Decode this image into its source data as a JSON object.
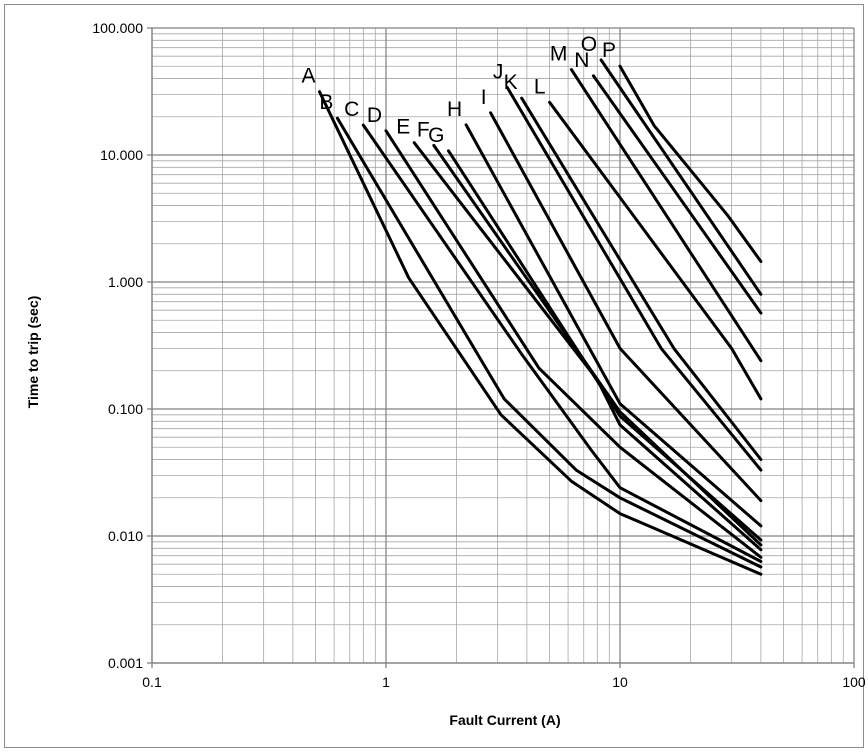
{
  "chart_data": {
    "type": "line",
    "title": "",
    "xlabel": "Fault Current (A)",
    "ylabel": "Time to trip (sec)",
    "xscale": "log",
    "yscale": "log",
    "xlim": [
      0.1,
      100
    ],
    "ylim": [
      0.001,
      100
    ],
    "grid": true,
    "legend": "none",
    "colors": {
      "line": "#000000",
      "grid": "#a6a6a6",
      "frame": "#8c8c8c"
    },
    "x_tick_labels": [
      {
        "value": 0.1,
        "label": "0.1"
      },
      {
        "value": 1,
        "label": "1"
      },
      {
        "value": 10,
        "label": "10"
      },
      {
        "value": 100,
        "label": "100"
      }
    ],
    "y_tick_labels": [
      {
        "value": 0.001,
        "label": "0.001"
      },
      {
        "value": 0.01,
        "label": "0.010"
      },
      {
        "value": 0.1,
        "label": "0.100"
      },
      {
        "value": 1,
        "label": "1.000"
      },
      {
        "value": 10,
        "label": "10.000"
      },
      {
        "value": 100,
        "label": "100.000"
      }
    ],
    "series": [
      {
        "name": "A",
        "points": [
          [
            0.52,
            31.5
          ],
          [
            1.25,
            1.08
          ],
          [
            3.1,
            0.09
          ],
          [
            6.2,
            0.027
          ],
          [
            10,
            0.015
          ],
          [
            40,
            0.005
          ]
        ]
      },
      {
        "name": "B",
        "points": [
          [
            0.62,
            19.5
          ],
          [
            3.2,
            0.12
          ],
          [
            6.5,
            0.033
          ],
          [
            10,
            0.02
          ],
          [
            40,
            0.0057
          ]
        ]
      },
      {
        "name": "C",
        "points": [
          [
            0.8,
            17.2
          ],
          [
            3.8,
            0.27
          ],
          [
            7.5,
            0.048
          ],
          [
            10,
            0.024
          ],
          [
            40,
            0.0063
          ]
        ]
      },
      {
        "name": "D",
        "points": [
          [
            1.0,
            15.5
          ],
          [
            4.5,
            0.21
          ],
          [
            10,
            0.05
          ],
          [
            40,
            0.0068
          ]
        ]
      },
      {
        "name": "E",
        "points": [
          [
            1.32,
            12.5
          ],
          [
            8.0,
            0.17
          ],
          [
            10,
            0.075
          ],
          [
            40,
            0.0078
          ]
        ]
      },
      {
        "name": "F",
        "points": [
          [
            1.6,
            11.9
          ],
          [
            10,
            0.095
          ],
          [
            40,
            0.0085
          ]
        ]
      },
      {
        "name": "G",
        "points": [
          [
            1.85,
            10.8
          ],
          [
            10,
            0.088
          ],
          [
            40,
            0.0093
          ]
        ]
      },
      {
        "name": "H",
        "points": [
          [
            2.2,
            17.3
          ],
          [
            10,
            0.11
          ],
          [
            40,
            0.012
          ]
        ]
      },
      {
        "name": "I",
        "points": [
          [
            2.8,
            21.5
          ],
          [
            10,
            0.3
          ],
          [
            40,
            0.019
          ]
        ]
      },
      {
        "name": "J",
        "points": [
          [
            3.3,
            34.0
          ],
          [
            15,
            0.3
          ],
          [
            40,
            0.033
          ]
        ]
      },
      {
        "name": "K",
        "points": [
          [
            3.8,
            28.0
          ],
          [
            17,
            0.3
          ],
          [
            40,
            0.04
          ]
        ]
      },
      {
        "name": "L",
        "points": [
          [
            5.0,
            26.0
          ],
          [
            30,
            0.3
          ],
          [
            40,
            0.12
          ]
        ]
      },
      {
        "name": "M",
        "points": [
          [
            6.2,
            47.0
          ],
          [
            40,
            0.24
          ]
        ]
      },
      {
        "name": "N",
        "points": [
          [
            7.7,
            42.0
          ],
          [
            40,
            0.57
          ]
        ]
      },
      {
        "name": "O",
        "points": [
          [
            8.3,
            56.0
          ],
          [
            40,
            0.8
          ]
        ]
      },
      {
        "name": "P",
        "points": [
          [
            10,
            50.0
          ],
          [
            14,
            17.0
          ],
          [
            29,
            3.3
          ],
          [
            40,
            1.45
          ]
        ]
      }
    ]
  }
}
